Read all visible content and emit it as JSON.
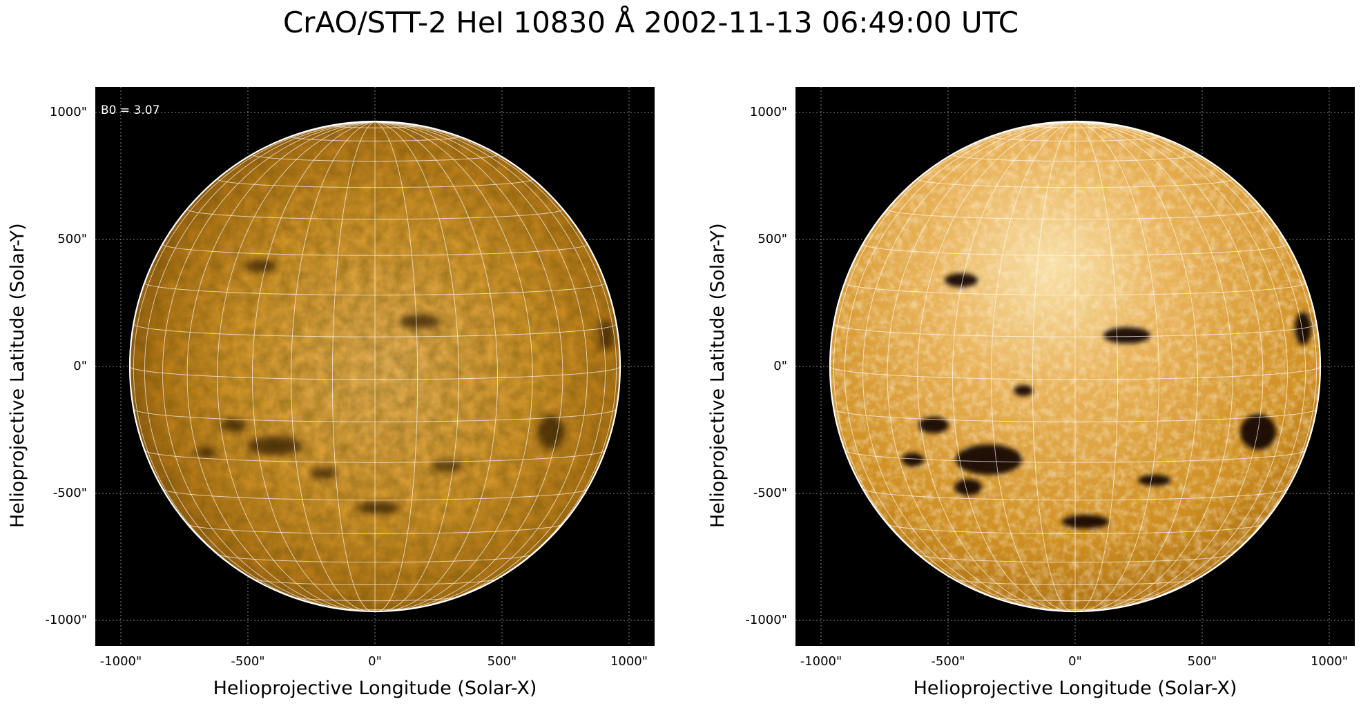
{
  "title": "CrAO/STT-2 HeI 10830 Å 2002-11-13 06:49:00 UTC",
  "colors": {
    "background": "#000000",
    "disk_base": "#c98a17",
    "disk_bright": "#f3d08a",
    "grid": "#ffffff"
  },
  "panels": [
    {
      "id": "left",
      "annotation": "B0 = 3.07",
      "xlabel": "Helioprojective Longitude (Solar-X)",
      "ylabel": "Helioprojective Latitude (Solar-Y)",
      "xticks": [
        "-1000\"",
        "-500\"",
        "0\"",
        "500\"",
        "1000\""
      ],
      "yticks": [
        "1000\"",
        "500\"",
        "0\"",
        "-500\"",
        "-1000\""
      ],
      "image": "Full solar disk in He I 10830 Å, orange colormap, lower contrast, heliographic grid overlay"
    },
    {
      "id": "right",
      "annotation": "",
      "xlabel": "Helioprojective Longitude (Solar-X)",
      "ylabel": "Helioprojective Latitude (Solar-Y)",
      "xticks": [
        "-1000\"",
        "-500\"",
        "0\"",
        "500\"",
        "1000\""
      ],
      "yticks": [
        "1000\"",
        "500\"",
        "0\"",
        "-500\"",
        "-1000\""
      ],
      "image": "Full solar disk in He I 10830 Å, orange colormap, higher contrast, heliographic grid overlay"
    }
  ]
}
